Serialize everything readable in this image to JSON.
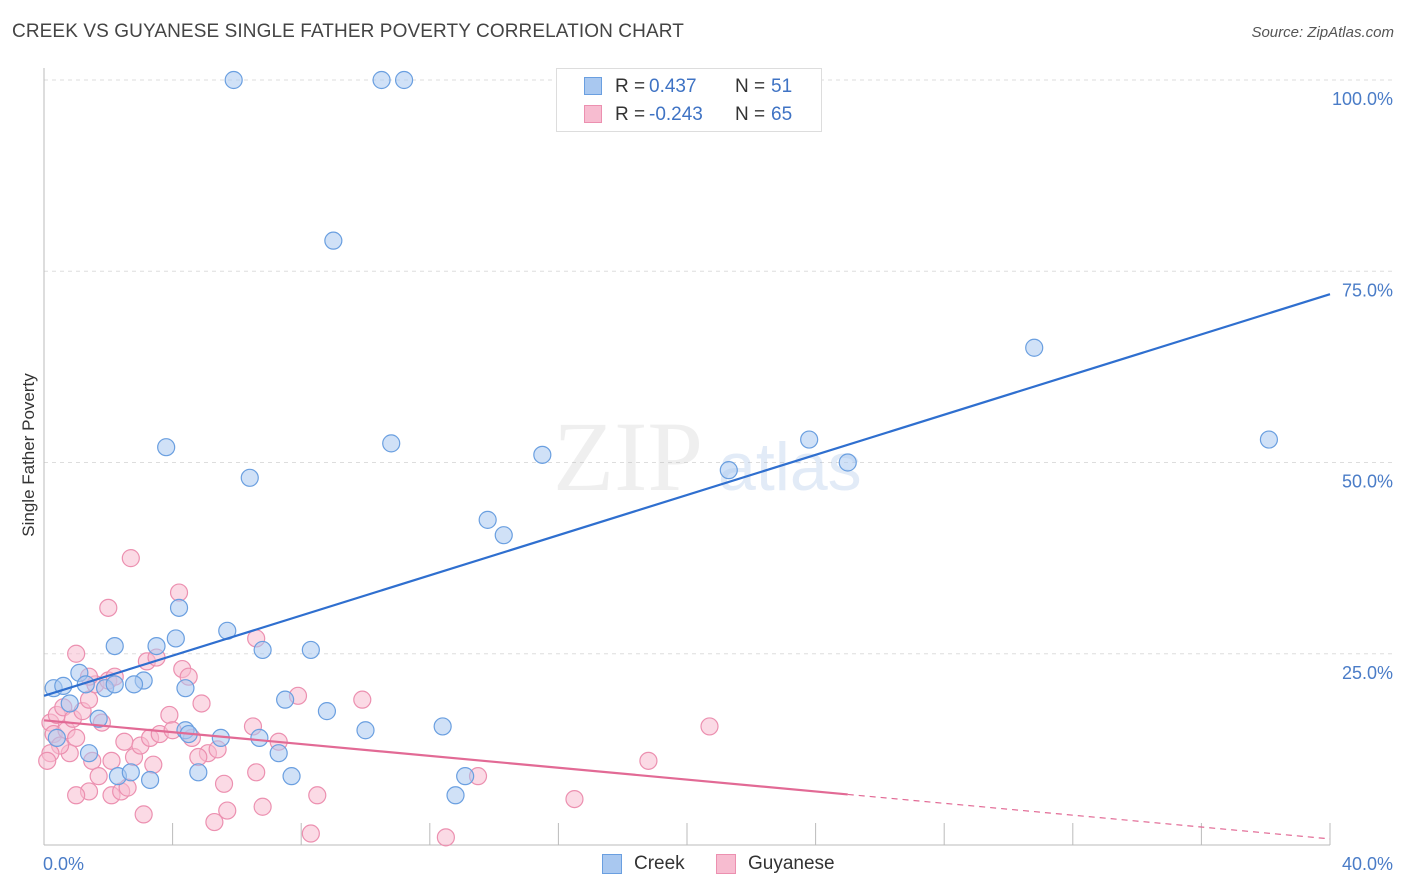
{
  "title": "CREEK VS GUYANESE SINGLE FATHER POVERTY CORRELATION CHART",
  "source": "Source: ZipAtlas.com",
  "watermark": {
    "zip": "ZIP",
    "atlas": "atlas"
  },
  "legend": {
    "rows": [
      {
        "r_label": "R =",
        "r_value": "0.437",
        "n_label": "N =",
        "n_value": "51"
      },
      {
        "r_label": "R =",
        "r_value": "-0.243",
        "n_label": "N =",
        "n_value": "65"
      }
    ]
  },
  "colors": {
    "creek_fill": "#a9c8f0",
    "creek_stroke": "#6a9fe0",
    "creek_line": "#2f6fcf",
    "guyanese_fill": "#f7bcd0",
    "guyanese_stroke": "#ec90b0",
    "guyanese_line": "#e26a95",
    "axis_text": "#4a7cc7",
    "grid": "#dddddd"
  },
  "chart_data": {
    "type": "scatter",
    "title": "CREEK VS GUYANESE SINGLE FATHER POVERTY CORRELATION CHART",
    "xlabel": "",
    "ylabel": "Single Father Poverty",
    "xlim": [
      0,
      40
    ],
    "ylim": [
      0,
      100
    ],
    "x_tick_labels": [
      "0.0%",
      "40.0%"
    ],
    "y_ticks": [
      25,
      50,
      75,
      100
    ],
    "y_tick_labels": [
      "25.0%",
      "50.0%",
      "75.0%",
      "100.0%"
    ],
    "grid": true,
    "legend_position": "top-center",
    "series": [
      {
        "name": "Creek",
        "r": 0.437,
        "n": 51,
        "trend": {
          "x": [
            0,
            40
          ],
          "y": [
            19.5,
            72.0
          ]
        },
        "points": [
          [
            0.3,
            20.5
          ],
          [
            0.6,
            20.8
          ],
          [
            1.1,
            22.5
          ],
          [
            1.3,
            21.0
          ],
          [
            0.8,
            18.5
          ],
          [
            1.7,
            16.5
          ],
          [
            1.4,
            12.0
          ],
          [
            1.9,
            20.5
          ],
          [
            2.2,
            21.0
          ],
          [
            3.1,
            21.5
          ],
          [
            2.8,
            21.0
          ],
          [
            2.3,
            9.0
          ],
          [
            3.5,
            26.0
          ],
          [
            2.2,
            26.0
          ],
          [
            4.1,
            27.0
          ],
          [
            4.4,
            20.5
          ],
          [
            5.7,
            28.0
          ],
          [
            6.8,
            25.5
          ],
          [
            8.3,
            25.5
          ],
          [
            4.2,
            31.0
          ],
          [
            3.8,
            52.0
          ],
          [
            6.4,
            48.0
          ],
          [
            5.9,
            100.0
          ],
          [
            10.5,
            100.0
          ],
          [
            11.2,
            100.0
          ],
          [
            9.0,
            79.0
          ],
          [
            10.8,
            52.5
          ],
          [
            15.5,
            51.0
          ],
          [
            14.3,
            40.5
          ],
          [
            13.8,
            42.5
          ],
          [
            21.3,
            49.0
          ],
          [
            23.8,
            53.0
          ],
          [
            25.0,
            50.0
          ],
          [
            30.8,
            65.0
          ],
          [
            38.1,
            53.0
          ],
          [
            7.5,
            19.0
          ],
          [
            8.8,
            17.5
          ],
          [
            10.0,
            15.0
          ],
          [
            12.4,
            15.5
          ],
          [
            6.7,
            14.0
          ],
          [
            7.3,
            12.0
          ],
          [
            5.5,
            14.0
          ],
          [
            4.4,
            15.0
          ],
          [
            3.3,
            8.5
          ],
          [
            13.1,
            9.0
          ],
          [
            7.7,
            9.0
          ],
          [
            4.8,
            9.5
          ],
          [
            2.7,
            9.5
          ],
          [
            12.8,
            6.5
          ],
          [
            0.4,
            14.0
          ],
          [
            4.5,
            14.5
          ]
        ]
      },
      {
        "name": "Guyanese",
        "r": -0.243,
        "n": 65,
        "trend": {
          "x": [
            0,
            40
          ],
          "y": [
            16.3,
            0.8
          ]
        },
        "trend_solid_until": 25.0,
        "points": [
          [
            0.2,
            16.0
          ],
          [
            0.3,
            14.5
          ],
          [
            0.4,
            17.0
          ],
          [
            0.6,
            18.0
          ],
          [
            0.7,
            15.0
          ],
          [
            0.9,
            16.5
          ],
          [
            1.0,
            14.0
          ],
          [
            1.2,
            17.5
          ],
          [
            1.4,
            19.0
          ],
          [
            1.6,
            21.0
          ],
          [
            1.8,
            16.0
          ],
          [
            2.0,
            21.5
          ],
          [
            2.2,
            22.0
          ],
          [
            0.8,
            12.0
          ],
          [
            1.5,
            11.0
          ],
          [
            1.7,
            9.0
          ],
          [
            2.1,
            11.0
          ],
          [
            2.5,
            13.5
          ],
          [
            2.8,
            11.5
          ],
          [
            3.0,
            13.0
          ],
          [
            3.3,
            14.0
          ],
          [
            3.6,
            14.5
          ],
          [
            3.9,
            17.0
          ],
          [
            4.0,
            15.0
          ],
          [
            4.3,
            23.0
          ],
          [
            4.6,
            14.0
          ],
          [
            4.9,
            18.5
          ],
          [
            5.1,
            12.0
          ],
          [
            5.4,
            12.5
          ],
          [
            5.6,
            8.0
          ],
          [
            6.6,
            9.5
          ],
          [
            6.5,
            15.5
          ],
          [
            7.3,
            13.5
          ],
          [
            7.9,
            19.5
          ],
          [
            8.5,
            6.5
          ],
          [
            9.9,
            19.0
          ],
          [
            1.4,
            22.0
          ],
          [
            2.0,
            31.0
          ],
          [
            2.7,
            37.5
          ],
          [
            3.2,
            24.0
          ],
          [
            3.5,
            24.5
          ],
          [
            4.2,
            33.0
          ],
          [
            1.0,
            25.0
          ],
          [
            0.5,
            13.0
          ],
          [
            6.6,
            27.0
          ],
          [
            4.5,
            22.0
          ],
          [
            5.3,
            3.0
          ],
          [
            6.8,
            5.0
          ],
          [
            8.3,
            1.5
          ],
          [
            12.5,
            1.0
          ],
          [
            13.5,
            9.0
          ],
          [
            16.5,
            6.0
          ],
          [
            18.8,
            11.0
          ],
          [
            20.7,
            15.5
          ],
          [
            3.1,
            4.0
          ],
          [
            2.1,
            6.5
          ],
          [
            1.4,
            7.0
          ],
          [
            1.0,
            6.5
          ],
          [
            2.4,
            7.0
          ],
          [
            2.6,
            7.5
          ],
          [
            3.4,
            10.5
          ],
          [
            0.2,
            12.0
          ],
          [
            4.8,
            11.5
          ],
          [
            5.7,
            4.5
          ],
          [
            0.1,
            11.0
          ]
        ]
      }
    ]
  },
  "bottom_legend": [
    {
      "label": "Creek"
    },
    {
      "label": "Guyanese"
    }
  ]
}
